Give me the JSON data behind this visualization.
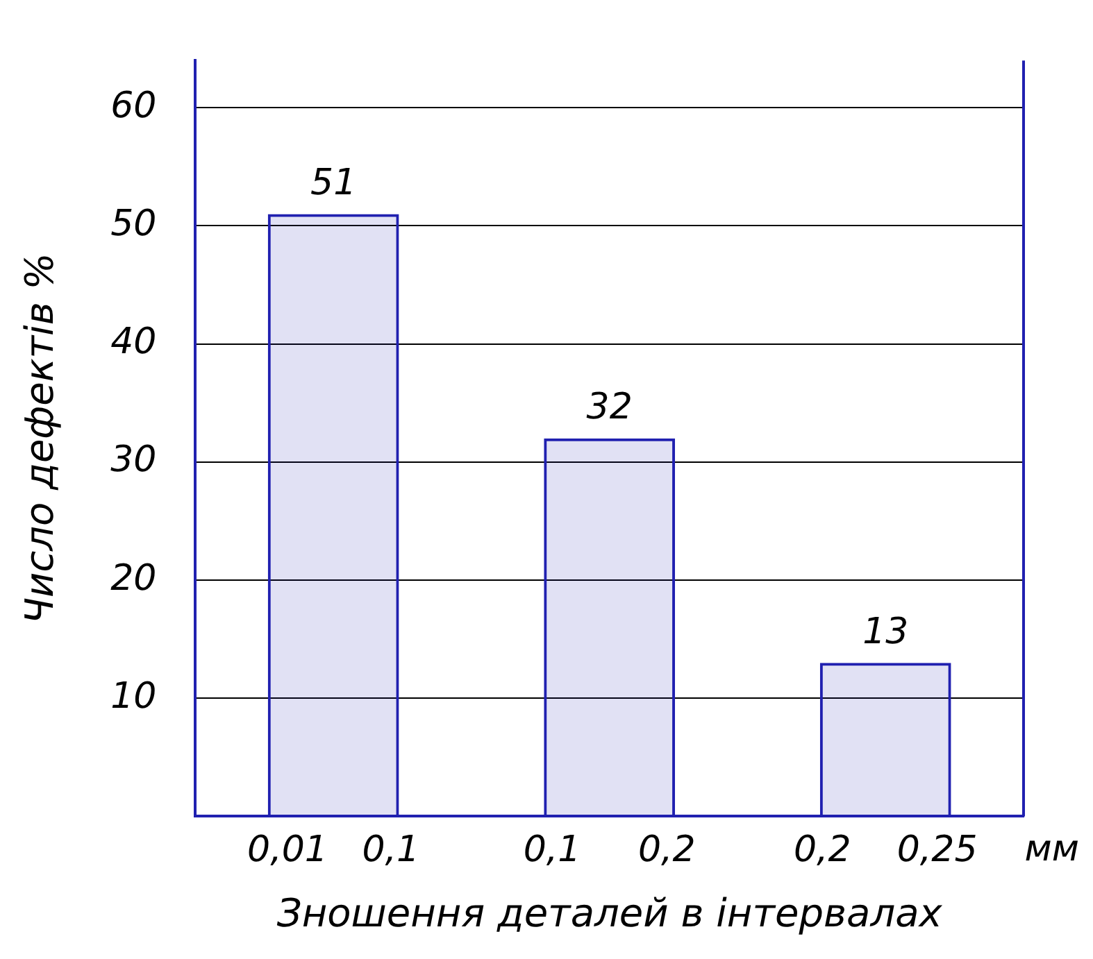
{
  "chart_data": {
    "type": "bar",
    "xlabel": "Зношення деталей в інтервалах",
    "ylabel": "Число дефектів %",
    "categories": [
      "0,01   0,1",
      "0,1     0,2",
      "0,2    0,25"
    ],
    "values": [
      51,
      32,
      13
    ],
    "color": "#2020b0",
    "ylim": [
      0,
      64
    ],
    "yticks": [
      10,
      20,
      30,
      40,
      50,
      60
    ],
    "grid": "y",
    "data_labels": true,
    "annotations": [
      "мм"
    ]
  }
}
